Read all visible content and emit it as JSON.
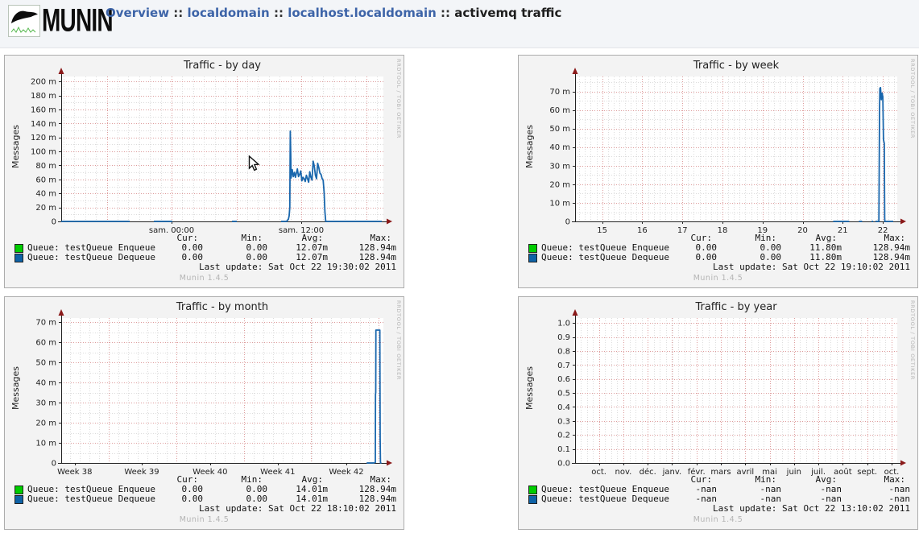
{
  "header": {
    "logo": {
      "text": "MUNIN"
    },
    "breadcrumb": {
      "separator": " :: ",
      "items": [
        {
          "label": "Overview",
          "type": "link"
        },
        {
          "label": "localdomain",
          "type": "link"
        },
        {
          "label": "localhost.localdomain",
          "type": "link"
        },
        {
          "label": "activemq traffic",
          "type": "text"
        }
      ]
    }
  },
  "colors": {
    "link_blue": "#3d64a8",
    "series_line_blue": "#1a67ad",
    "legend_green": "#00cc00",
    "legend_blue": "#0e62a6",
    "grid_major_red": "#dd9b9b",
    "grid_minor_gray": "#dcdcdc",
    "axis_arrow_red": "#8b1a1a",
    "panel_background": "#f3f3f3"
  },
  "mouse_cursor": {
    "panel_index": 0
  },
  "chart_data": [
    {
      "id": "day",
      "type": "line",
      "title": "Traffic - by day",
      "ylabel": "Messages",
      "xlabel": "",
      "watermark": "RRDTOOL / TOBI OETIKER",
      "footer": "Munin 1.4.5",
      "ylim": [
        0,
        207
      ],
      "line_color": "#1a67ad",
      "yticks": [
        {
          "v": 0,
          "label": "0"
        },
        {
          "v": 20,
          "label": "20 m"
        },
        {
          "v": 40,
          "label": "40 m"
        },
        {
          "v": 60,
          "label": "60 m"
        },
        {
          "v": 80,
          "label": "80 m"
        },
        {
          "v": 100,
          "label": "100 m"
        },
        {
          "v": 120,
          "label": "120 m"
        },
        {
          "v": 140,
          "label": "140 m"
        },
        {
          "v": 160,
          "label": "160 m"
        },
        {
          "v": 180,
          "label": "180 m"
        },
        {
          "v": 200,
          "label": "200 m"
        }
      ],
      "xticks": [
        {
          "pos": 0.3425,
          "label": "sam. 00:00"
        },
        {
          "pos": 0.745,
          "label": "sam. 12:00"
        }
      ],
      "grid": {
        "x_major": [
          0.14125,
          0.3425,
          0.54375,
          0.745,
          0.94625
        ],
        "x_minor_step": 0.0335417,
        "x_minor_offset": 0.00708,
        "y_major_step": 20,
        "y_minor_step": 10
      },
      "segments": [
        [
          [
            0.0,
            0
          ],
          [
            0.2125,
            0
          ]
        ],
        [
          [
            0.2875,
            0
          ],
          [
            0.345,
            0
          ]
        ],
        [
          [
            0.53,
            0
          ],
          [
            0.545,
            0
          ]
        ],
        [
          [
            0.6825,
            0
          ],
          [
            0.7,
            0
          ],
          [
            0.7025,
            2
          ],
          [
            0.705,
            3
          ],
          [
            0.7075,
            8
          ],
          [
            0.7095,
            20
          ],
          [
            0.711,
            128.94
          ],
          [
            0.7125,
            95
          ],
          [
            0.7135,
            62
          ],
          [
            0.717,
            74
          ],
          [
            0.7205,
            64
          ],
          [
            0.724,
            70
          ],
          [
            0.727,
            63
          ],
          [
            0.73,
            69
          ],
          [
            0.733,
            75
          ],
          [
            0.7365,
            64
          ],
          [
            0.74,
            67
          ],
          [
            0.7435,
            72
          ],
          [
            0.747,
            58
          ],
          [
            0.7505,
            63
          ],
          [
            0.754,
            61
          ],
          [
            0.7575,
            57
          ],
          [
            0.761,
            66
          ],
          [
            0.7645,
            61
          ],
          [
            0.768,
            56
          ],
          [
            0.7715,
            71
          ],
          [
            0.775,
            63
          ],
          [
            0.7785,
            59
          ],
          [
            0.782,
            86
          ],
          [
            0.7855,
            79
          ],
          [
            0.789,
            66
          ],
          [
            0.7925,
            61
          ],
          [
            0.796,
            83
          ],
          [
            0.7995,
            77
          ],
          [
            0.803,
            69
          ],
          [
            0.8065,
            67
          ],
          [
            0.81,
            61
          ],
          [
            0.813,
            59
          ],
          [
            0.816,
            42
          ],
          [
            0.8185,
            14
          ],
          [
            0.821,
            0
          ],
          [
            0.995,
            0
          ]
        ]
      ],
      "legend": {
        "headers": [
          "Cur:",
          "Min:",
          "Avg:",
          "Max:"
        ],
        "rows": [
          {
            "name": "Queue: testQueue Enqueue",
            "color": "#00cc00",
            "values": [
              "0.00",
              "0.00",
              "12.07m",
              "128.94m"
            ]
          },
          {
            "name": "Queue: testQueue Dequeue",
            "color": "#0e62a6",
            "values": [
              "0.00",
              "0.00",
              "12.07m",
              "128.94m"
            ]
          }
        ],
        "last_update": "Last update: Sat Oct 22 19:30:02 2011"
      }
    },
    {
      "id": "week",
      "type": "line",
      "title": "Traffic - by week",
      "ylabel": "Messages",
      "xlabel": "",
      "watermark": "RRDTOOL / TOBI OETIKER",
      "footer": "Munin 1.4.5",
      "ylim": [
        0,
        78
      ],
      "line_color": "#1a67ad",
      "yticks": [
        {
          "v": 0,
          "label": "0"
        },
        {
          "v": 10,
          "label": "10 m"
        },
        {
          "v": 20,
          "label": "20 m"
        },
        {
          "v": 30,
          "label": "30 m"
        },
        {
          "v": 40,
          "label": "40 m"
        },
        {
          "v": 50,
          "label": "50 m"
        },
        {
          "v": 60,
          "label": "60 m"
        },
        {
          "v": 70,
          "label": "70 m"
        }
      ],
      "xticks": [
        {
          "pos": 0.084,
          "label": "15"
        },
        {
          "pos": 0.2085,
          "label": "16"
        },
        {
          "pos": 0.3329,
          "label": "17"
        },
        {
          "pos": 0.4574,
          "label": "18"
        },
        {
          "pos": 0.5818,
          "label": "19"
        },
        {
          "pos": 0.7063,
          "label": "20"
        },
        {
          "pos": 0.8307,
          "label": "21"
        },
        {
          "pos": 0.9552,
          "label": "22"
        }
      ],
      "grid": {
        "x_major": [
          0.084,
          0.2085,
          0.3329,
          0.4574,
          0.5818,
          0.7063,
          0.8307,
          0.9552
        ],
        "x_minor_step": 0.017778,
        "x_minor_offset": 0.012888,
        "y_major_step": 10,
        "y_minor_step": 5
      },
      "segments": [
        [
          [
            0.801,
            0
          ],
          [
            0.851,
            0
          ]
        ],
        [
          [
            0.881,
            0
          ],
          [
            0.891,
            0
          ]
        ],
        [
          [
            0.9206,
            0
          ],
          [
            0.9256,
            0
          ]
        ],
        [
          [
            0.932,
            0
          ],
          [
            0.9429,
            0
          ],
          [
            0.9449,
            58
          ],
          [
            0.9459,
            71.5
          ],
          [
            0.9479,
            72
          ],
          [
            0.9504,
            65.5
          ],
          [
            0.9529,
            69
          ],
          [
            0.9553,
            67
          ],
          [
            0.9573,
            44
          ],
          [
            0.9598,
            42
          ],
          [
            0.961,
            2
          ],
          [
            0.9615,
            0
          ],
          [
            0.9876,
            0
          ]
        ]
      ],
      "legend": {
        "headers": [
          "Cur:",
          "Min:",
          "Avg:",
          "Max:"
        ],
        "rows": [
          {
            "name": "Queue: testQueue Enqueue",
            "color": "#00cc00",
            "values": [
              "0.00",
              "0.00",
              "11.80m",
              "128.94m"
            ]
          },
          {
            "name": "Queue: testQueue Dequeue",
            "color": "#0e62a6",
            "values": [
              "0.00",
              "0.00",
              "11.80m",
              "128.94m"
            ]
          }
        ],
        "last_update": "Last update: Sat Oct 22 19:10:02 2011"
      }
    },
    {
      "id": "month",
      "type": "line",
      "title": "Traffic - by month",
      "ylabel": "Messages",
      "xlabel": "",
      "watermark": "RRDTOOL / TOBI OETIKER",
      "footer": "Munin 1.4.5",
      "ylim": [
        0,
        72
      ],
      "line_color": "#1a67ad",
      "yticks": [
        {
          "v": 0,
          "label": "0"
        },
        {
          "v": 10,
          "label": "10 m"
        },
        {
          "v": 20,
          "label": "20 m"
        },
        {
          "v": 30,
          "label": "30 m"
        },
        {
          "v": 40,
          "label": "40 m"
        },
        {
          "v": 50,
          "label": "50 m"
        },
        {
          "v": 60,
          "label": "60 m"
        },
        {
          "v": 70,
          "label": "70 m"
        }
      ],
      "xticks": [
        {
          "pos": 0.042,
          "label": "Week 38"
        },
        {
          "pos": 0.25,
          "label": "Week 39"
        },
        {
          "pos": 0.462,
          "label": "Week 40"
        },
        {
          "pos": 0.672,
          "label": "Week 41"
        },
        {
          "pos": 0.885,
          "label": "Week 42"
        }
      ],
      "grid": {
        "x_major": [
          0.148,
          0.357,
          0.567,
          0.776,
          0.985
        ],
        "x_minor_step": 0.02993,
        "x_minor_offset": 0.02828,
        "y_major_step": 10,
        "y_minor_step": 5
      },
      "segments": [
        [
          [
            0.948,
            0
          ],
          [
            0.9727,
            0
          ]
        ],
        [
          [
            0.975,
            0
          ],
          [
            0.9755,
            34
          ],
          [
            0.9762,
            35
          ],
          [
            0.9768,
            66
          ],
          [
            0.989,
            66
          ],
          [
            0.99,
            12
          ],
          [
            0.991,
            0
          ],
          [
            0.994,
            0
          ]
        ]
      ],
      "legend": {
        "headers": [
          "Cur:",
          "Min:",
          "Avg:",
          "Max:"
        ],
        "rows": [
          {
            "name": "Queue: testQueue Enqueue",
            "color": "#00cc00",
            "values": [
              "0.00",
              "0.00",
              "14.01m",
              "128.94m"
            ]
          },
          {
            "name": "Queue: testQueue Dequeue",
            "color": "#0e62a6",
            "values": [
              "0.00",
              "0.00",
              "14.01m",
              "128.94m"
            ]
          }
        ],
        "last_update": "Last update: Sat Oct 22 18:10:02 2011"
      }
    },
    {
      "id": "year",
      "type": "line",
      "title": "Traffic - by year",
      "ylabel": "Messages",
      "xlabel": "",
      "watermark": "RRDTOOL / TOBI OETIKER",
      "footer": "Munin 1.4.5",
      "ylim": [
        0,
        1.035
      ],
      "line_color": "#1a67ad",
      "yticks": [
        {
          "v": 0,
          "label": "0.0"
        },
        {
          "v": 0.1,
          "label": "0.1"
        },
        {
          "v": 0.2,
          "label": "0.2"
        },
        {
          "v": 0.3,
          "label": "0.3"
        },
        {
          "v": 0.4,
          "label": "0.4"
        },
        {
          "v": 0.5,
          "label": "0.5"
        },
        {
          "v": 0.6,
          "label": "0.6"
        },
        {
          "v": 0.7,
          "label": "0.7"
        },
        {
          "v": 0.8,
          "label": "0.8"
        },
        {
          "v": 0.9,
          "label": "0.9"
        },
        {
          "v": 1.0,
          "label": "1.0"
        }
      ],
      "xticks": [
        {
          "pos": 0.074,
          "label": "oct."
        },
        {
          "pos": 0.1497,
          "label": "nov."
        },
        {
          "pos": 0.2254,
          "label": "déc."
        },
        {
          "pos": 0.3011,
          "label": "janv."
        },
        {
          "pos": 0.3768,
          "label": "févr."
        },
        {
          "pos": 0.4525,
          "label": "mars"
        },
        {
          "pos": 0.5282,
          "label": "avril"
        },
        {
          "pos": 0.6039,
          "label": "mai"
        },
        {
          "pos": 0.6796,
          "label": "juin"
        },
        {
          "pos": 0.7553,
          "label": "juil."
        },
        {
          "pos": 0.831,
          "label": "août"
        },
        {
          "pos": 0.9067,
          "label": "sept."
        },
        {
          "pos": 0.9824,
          "label": "oct."
        }
      ],
      "grid": {
        "x_major": [
          0.074,
          0.1497,
          0.2254,
          0.3011,
          0.3768,
          0.4525,
          0.5282,
          0.6039,
          0.6796,
          0.7553,
          0.831,
          0.9067,
          0.9824
        ],
        "x_minor_step": 0.018925,
        "x_minor_offset": 0.0173,
        "y_major_step": 0.1,
        "y_minor_step": 0
      },
      "segments": [],
      "legend": {
        "headers": [
          "Cur:",
          "Min:",
          "Avg:",
          "Max:"
        ],
        "rows": [
          {
            "name": "Queue: testQueue Enqueue",
            "color": "#00cc00",
            "values": [
              "-nan",
              "-nan",
              "-nan",
              "-nan"
            ]
          },
          {
            "name": "Queue: testQueue Dequeue",
            "color": "#0e62a6",
            "values": [
              "-nan",
              "-nan",
              "-nan",
              "-nan"
            ]
          }
        ],
        "last_update": "Last update: Sat Oct 22 13:10:02 2011"
      }
    }
  ]
}
